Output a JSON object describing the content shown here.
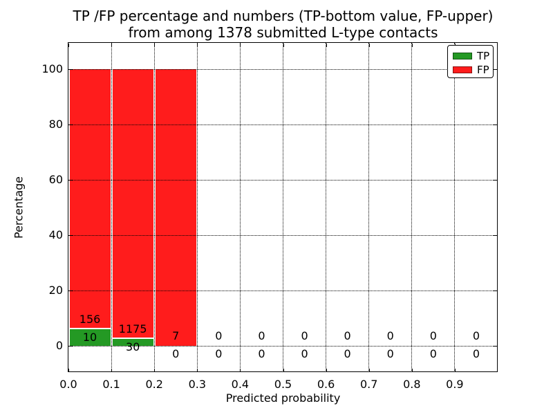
{
  "chart_data": {
    "type": "bar",
    "stacked": true,
    "title_line1": "TP /FP percentage and numbers (TP-bottom value, FP-upper)",
    "title_line2": "from among 1378 submitted L-type contacts",
    "xlabel": "Predicted probability",
    "ylabel": "Percentage",
    "total_submitted": 1378,
    "xlim": [
      0.0,
      1.0
    ],
    "ylim": [
      -9.5,
      109.5
    ],
    "grid": true,
    "bin_width": 0.1,
    "xtick_values": [
      0.0,
      0.1,
      0.2,
      0.3,
      0.4,
      0.5,
      0.6,
      0.7,
      0.8,
      0.9
    ],
    "xtick_labels": [
      "0.0",
      "0.1",
      "0.2",
      "0.3",
      "0.4",
      "0.5",
      "0.6",
      "0.7",
      "0.8",
      "0.9"
    ],
    "ytick_values": [
      0,
      20,
      40,
      60,
      80,
      100
    ],
    "ytick_labels": [
      "0",
      "20",
      "40",
      "60",
      "80",
      "100"
    ],
    "bins": [
      {
        "range": [
          0.0,
          0.1
        ],
        "tp_count": 10,
        "fp_count": 156,
        "tp_pct": 6.02,
        "fp_pct": 93.98
      },
      {
        "range": [
          0.1,
          0.2
        ],
        "tp_count": 30,
        "fp_count": 1175,
        "tp_pct": 2.49,
        "fp_pct": 97.51
      },
      {
        "range": [
          0.2,
          0.3
        ],
        "tp_count": 0,
        "fp_count": 7,
        "tp_pct": 0.0,
        "fp_pct": 100.0
      },
      {
        "range": [
          0.3,
          0.4
        ],
        "tp_count": 0,
        "fp_count": 0,
        "tp_pct": 0.0,
        "fp_pct": 0.0
      },
      {
        "range": [
          0.4,
          0.5
        ],
        "tp_count": 0,
        "fp_count": 0,
        "tp_pct": 0.0,
        "fp_pct": 0.0
      },
      {
        "range": [
          0.5,
          0.6
        ],
        "tp_count": 0,
        "fp_count": 0,
        "tp_pct": 0.0,
        "fp_pct": 0.0
      },
      {
        "range": [
          0.6,
          0.7
        ],
        "tp_count": 0,
        "fp_count": 0,
        "tp_pct": 0.0,
        "fp_pct": 0.0
      },
      {
        "range": [
          0.7,
          0.8
        ],
        "tp_count": 0,
        "fp_count": 0,
        "tp_pct": 0.0,
        "fp_pct": 0.0
      },
      {
        "range": [
          0.8,
          0.9
        ],
        "tp_count": 0,
        "fp_count": 0,
        "tp_pct": 0.0,
        "fp_pct": 0.0
      },
      {
        "range": [
          0.9,
          1.0
        ],
        "tp_count": 0,
        "fp_count": 0,
        "tp_pct": 0.0,
        "fp_pct": 0.0
      }
    ],
    "legend": {
      "position": "upper right",
      "entries": [
        {
          "label": "TP",
          "color": "#249924"
        },
        {
          "label": "FP",
          "color": "#ff1c1c"
        }
      ]
    }
  }
}
